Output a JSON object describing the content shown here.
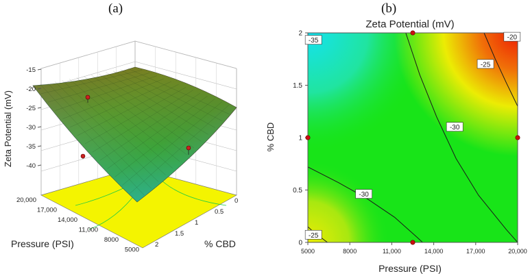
{
  "panels": {
    "a_label": "(a)",
    "b_label": "(b)"
  },
  "chart_data": [
    {
      "type": "surface3d",
      "zlabel": "Zeta Potential (mV)",
      "xlabel": "Pressure (PSI)",
      "ylabel": "% CBD",
      "z_ticks": [
        "-15",
        "-20",
        "-25",
        "-30",
        "-35",
        "-40"
      ],
      "zlim": [
        -40,
        -15
      ],
      "pressure_ticks": [
        "20,000",
        "17,000",
        "14,000",
        "11,000",
        "8000",
        "5000"
      ],
      "cbd_ticks": [
        "0",
        "0.5",
        "1",
        "1.5",
        "2"
      ],
      "xlim": [
        5000,
        20000
      ],
      "ylim": [
        0,
        2
      ],
      "surface_corners": [
        {
          "pressure": 20000,
          "cbd": 2,
          "zeta": -20
        },
        {
          "pressure": 20000,
          "cbd": 0,
          "zeta": -27
        },
        {
          "pressure": 5000,
          "cbd": 2,
          "zeta": -35
        },
        {
          "pressure": 5000,
          "cbd": 0,
          "zeta": -25
        }
      ],
      "surface_min": {
        "pressure": 12500,
        "cbd": 1,
        "zeta": -40
      },
      "design_points": [
        {
          "pressure": 20000,
          "cbd": 1,
          "zeta": -22
        },
        {
          "pressure": 12500,
          "cbd": 2,
          "zeta": -29
        },
        {
          "pressure": 5000,
          "cbd": 1,
          "zeta": -33
        }
      ],
      "floor_color": "#f4f400",
      "colors": {
        "high": "#c81e0a",
        "mid": "#46aa2a",
        "low": "#18c8e6"
      }
    },
    {
      "type": "contour",
      "title": "Zeta Potential (mV)",
      "xlabel": "Pressure (PSI)",
      "ylabel": "% CBD",
      "x_ticks": [
        "5000",
        "8000",
        "11,000",
        "14,000",
        "17,000",
        "20,000"
      ],
      "x_tick_values": [
        5000,
        8000,
        11000,
        14000,
        17000,
        20000
      ],
      "y_ticks": [
        "0",
        "0.5",
        "1",
        "1.5",
        "2"
      ],
      "y_tick_values": [
        0,
        0.5,
        1,
        1.5,
        2
      ],
      "xlim": [
        5000,
        20000
      ],
      "ylim": [
        0,
        2
      ],
      "contour_labels": [
        {
          "text": "-35",
          "x": 5400,
          "y": 1.93
        },
        {
          "text": "-20",
          "x": 19600,
          "y": 1.96
        },
        {
          "text": "-25",
          "x": 17700,
          "y": 1.7
        },
        {
          "text": "-30",
          "x": 15500,
          "y": 1.1
        },
        {
          "text": "-30",
          "x": 9000,
          "y": 0.46
        },
        {
          "text": "-25",
          "x": 5400,
          "y": 0.07
        }
      ],
      "design_points": [
        {
          "x": 5000,
          "y": 1
        },
        {
          "x": 12500,
          "y": 2
        },
        {
          "x": 20000,
          "y": 1
        },
        {
          "x": 12500,
          "y": 0
        }
      ],
      "colors": {
        "red": "#ee1c04",
        "yellow": "#ecec04",
        "green": "#18e418",
        "cyan": "#14e2f0",
        "point": "#cc1010"
      }
    }
  ]
}
